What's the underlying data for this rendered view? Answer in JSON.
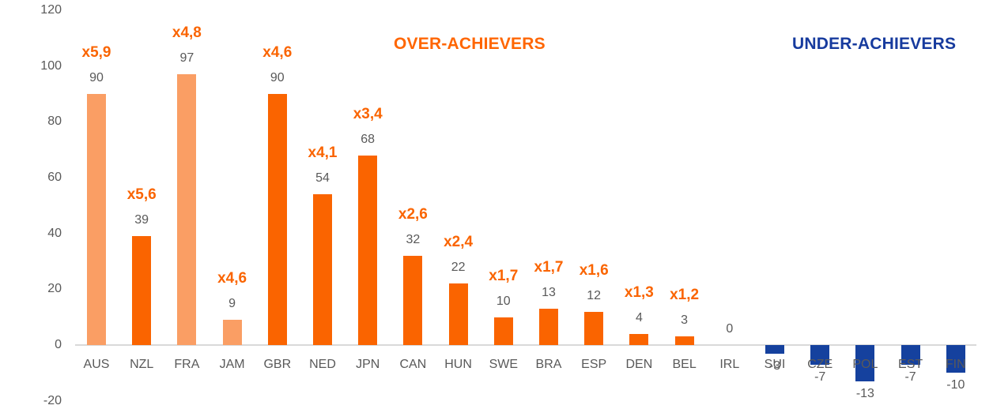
{
  "colors": {
    "bar_orange_dark": "#fa6400",
    "bar_orange_light": "#fa9e64",
    "bar_blue": "#15419e",
    "label_gray": "#595959",
    "axis_line_gray": "#d9d9d9",
    "title_orange": "#ff6600",
    "title_blue": "#173b9e"
  },
  "chart_data": {
    "type": "bar",
    "title": "",
    "xlabel": "",
    "ylabel": "",
    "categories": [
      "AUS",
      "NZL",
      "FRA",
      "JAM",
      "GBR",
      "NED",
      "JPN",
      "CAN",
      "HUN",
      "SWE",
      "BRA",
      "ESP",
      "DEN",
      "BEL",
      "IRL",
      "SUI",
      "CZE",
      "POL",
      "EST",
      "FIN"
    ],
    "values": [
      90,
      39,
      97,
      9,
      90,
      54,
      68,
      32,
      22,
      10,
      13,
      12,
      4,
      3,
      0,
      -3,
      -7,
      -13,
      -7,
      -10
    ],
    "value_labels": [
      "90",
      "39",
      "97",
      "9",
      "90",
      "54",
      "68",
      "32",
      "22",
      "10",
      "13",
      "12",
      "4",
      "3",
      "0",
      "-3",
      "-7",
      "-13",
      "-7",
      "-10"
    ],
    "multipliers": [
      "x5,9",
      "x5,6",
      "x4,8",
      "x4,6",
      "x4,6",
      "x4,1",
      "x3,4",
      "x2,6",
      "x2,4",
      "x1,7",
      "x1,7",
      "x1,6",
      "x1,3",
      "x1,2",
      "",
      "",
      "",
      "",
      "",
      ""
    ],
    "bar_styles": [
      "light",
      "dark",
      "light",
      "light",
      "dark",
      "dark",
      "dark",
      "dark",
      "dark",
      "dark",
      "dark",
      "dark",
      "dark",
      "dark",
      "none",
      "blue",
      "blue",
      "blue",
      "blue",
      "blue"
    ],
    "y_ticks": [
      120,
      100,
      80,
      60,
      40,
      20,
      0,
      -20
    ],
    "ylim": [
      -20,
      120
    ],
    "grid": false,
    "legend": null,
    "annotations": [
      {
        "text": "OVER-ACHIEVERS",
        "color": "#ff6600"
      },
      {
        "text": "UNDER-ACHIEVERS",
        "color": "#173b9e"
      }
    ]
  }
}
